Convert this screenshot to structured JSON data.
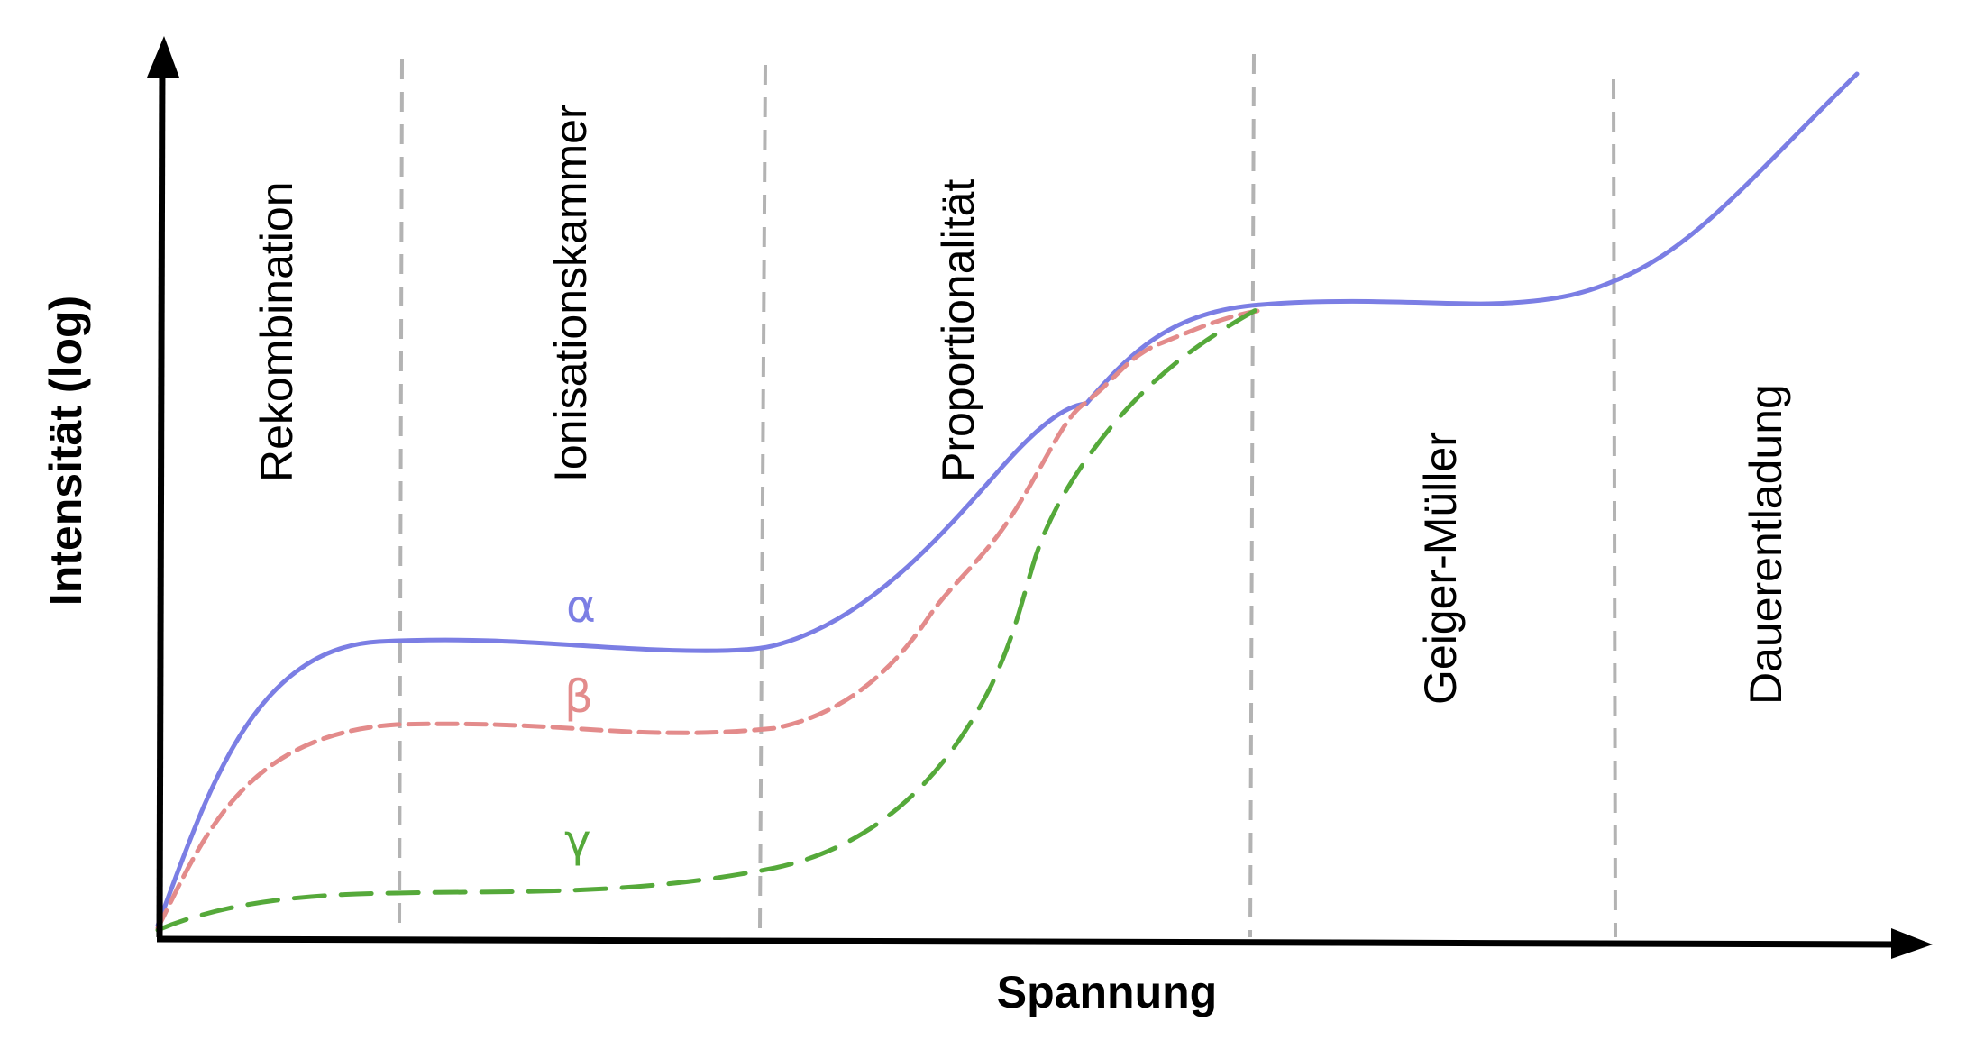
{
  "axes": {
    "x_label": "Spannung",
    "y_label": "Intensität (log)"
  },
  "regions": [
    {
      "id": "rekombination",
      "label": "Rekombination"
    },
    {
      "id": "ionisationskammer",
      "label": "Ionisationskammer"
    },
    {
      "id": "proportionalitaet",
      "label": "Proportionalität"
    },
    {
      "id": "geiger-mueller",
      "label": "Geiger-Müller"
    },
    {
      "id": "dauerentladung",
      "label": "Dauerentladung"
    }
  ],
  "curves": [
    {
      "id": "alpha",
      "label": "α",
      "color": "#7b7ee4",
      "style": "solid"
    },
    {
      "id": "beta",
      "label": "β",
      "color": "#e38b8b",
      "style": "dashed"
    },
    {
      "id": "gamma",
      "label": "γ",
      "color": "#55a93a",
      "style": "dashed"
    }
  ],
  "colors": {
    "axis": "#000000",
    "divider": "#b3b3b3"
  }
}
